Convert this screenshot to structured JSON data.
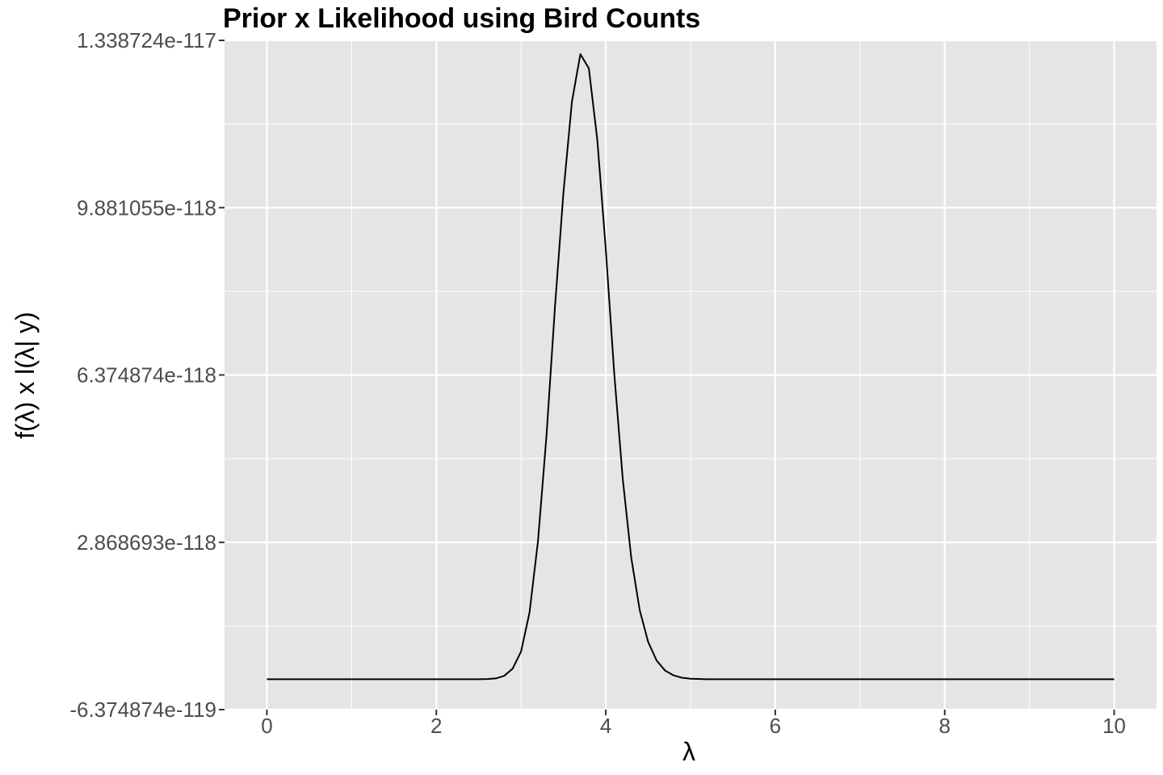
{
  "chart_data": {
    "type": "line",
    "title": "Prior x Likelihood using Bird Counts",
    "xlabel": "λ",
    "ylabel": "f(λ) x l(λ| y)",
    "xlim": [
      -0.5,
      10.5
    ],
    "ylim": [
      -6.374874e-119,
      1.338724e-117
    ],
    "x_ticks": [
      0,
      2,
      4,
      6,
      8,
      10
    ],
    "y_ticks": [
      -6.374874e-119,
      2.868693e-118,
      6.374874e-118,
      9.881055e-118,
      1.338724e-117
    ],
    "y_tick_labels": [
      "-6.374874e-119",
      "2.868693e-118",
      "6.374874e-118",
      "9.881055e-118",
      "1.338724e-117"
    ],
    "grid": true,
    "colors": {
      "panel": "#e5e5e5",
      "grid": "#ffffff",
      "line": "#000000"
    },
    "series": [
      {
        "x": [
          0,
          2.5,
          2.6,
          2.7,
          2.8,
          2.9,
          3.0,
          3.1,
          3.2,
          3.3,
          3.4,
          3.5,
          3.6,
          3.7,
          3.8,
          3.9,
          4.0,
          4.1,
          4.2,
          4.3,
          4.4,
          4.5,
          4.6,
          4.7,
          4.8,
          4.9,
          5.0,
          5.2,
          10
        ],
        "y": [
          0,
          0,
          3e-121,
          1.5e-120,
          7e-120,
          2.2e-119,
          5.8e-119,
          1.4e-118,
          2.9e-118,
          5.1e-118,
          7.8e-118,
          1.02e-117,
          1.21e-117,
          1.31e-117,
          1.28e-117,
          1.13e-117,
          9e-118,
          6.4e-118,
          4.2e-118,
          2.55e-118,
          1.45e-118,
          7.8e-119,
          3.9e-119,
          1.8e-119,
          8e-120,
          3e-120,
          1e-120,
          0,
          0
        ]
      }
    ]
  }
}
